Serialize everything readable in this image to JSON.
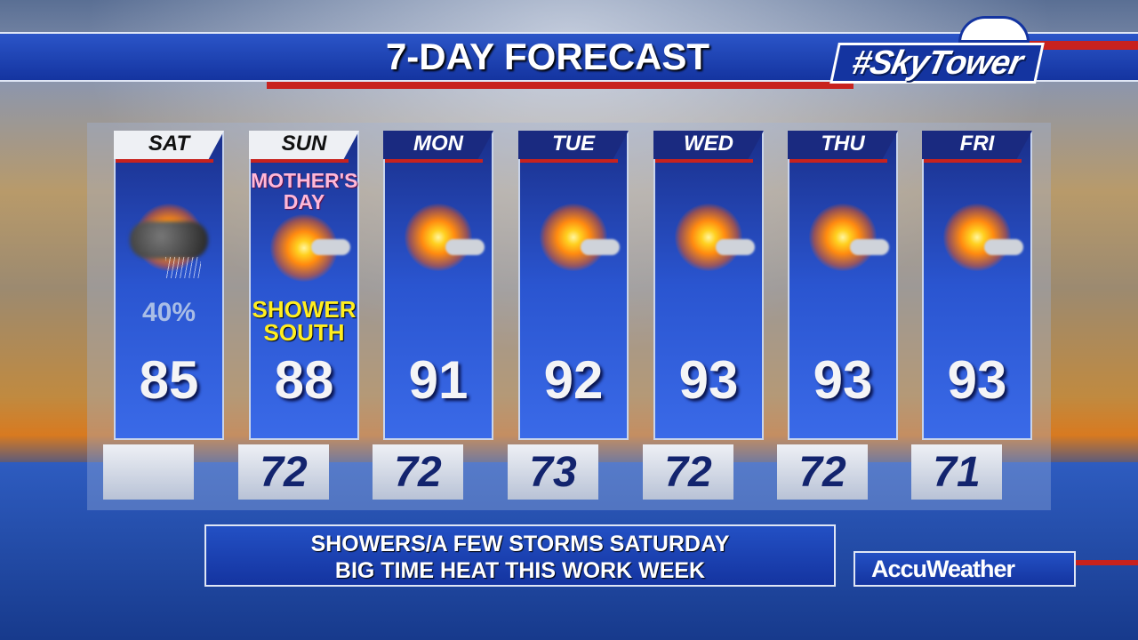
{
  "header": {
    "title": "7-DAY FORECAST",
    "logo": "#SkyTower"
  },
  "days": [
    {
      "day": "SAT",
      "icon": "rain-cloud-icon",
      "precip": "40%",
      "high": "85",
      "low": ""
    },
    {
      "day": "SUN",
      "banner": "MOTHER'S DAY",
      "icon": "mostly-sunny-icon",
      "note": "SHOWER SOUTH",
      "high": "88",
      "low": "72"
    },
    {
      "day": "MON",
      "icon": "mostly-sunny-icon",
      "high": "91",
      "low": "72"
    },
    {
      "day": "TUE",
      "icon": "mostly-sunny-icon",
      "high": "92",
      "low": "73"
    },
    {
      "day": "WED",
      "icon": "mostly-sunny-icon",
      "high": "93",
      "low": "72"
    },
    {
      "day": "THU",
      "icon": "mostly-sunny-icon",
      "high": "93",
      "low": "72"
    },
    {
      "day": "FRI",
      "icon": "mostly-sunny-icon",
      "high": "93",
      "low": "71"
    }
  ],
  "message": {
    "line1": "SHOWERS/A FEW STORMS SATURDAY",
    "line2": "BIG TIME HEAT THIS WORK WEEK"
  },
  "brand": "AccuWeather",
  "colors": {
    "panel": "#2a55d0",
    "accent_red": "#c8221e",
    "note_yellow": "#ffee20"
  }
}
